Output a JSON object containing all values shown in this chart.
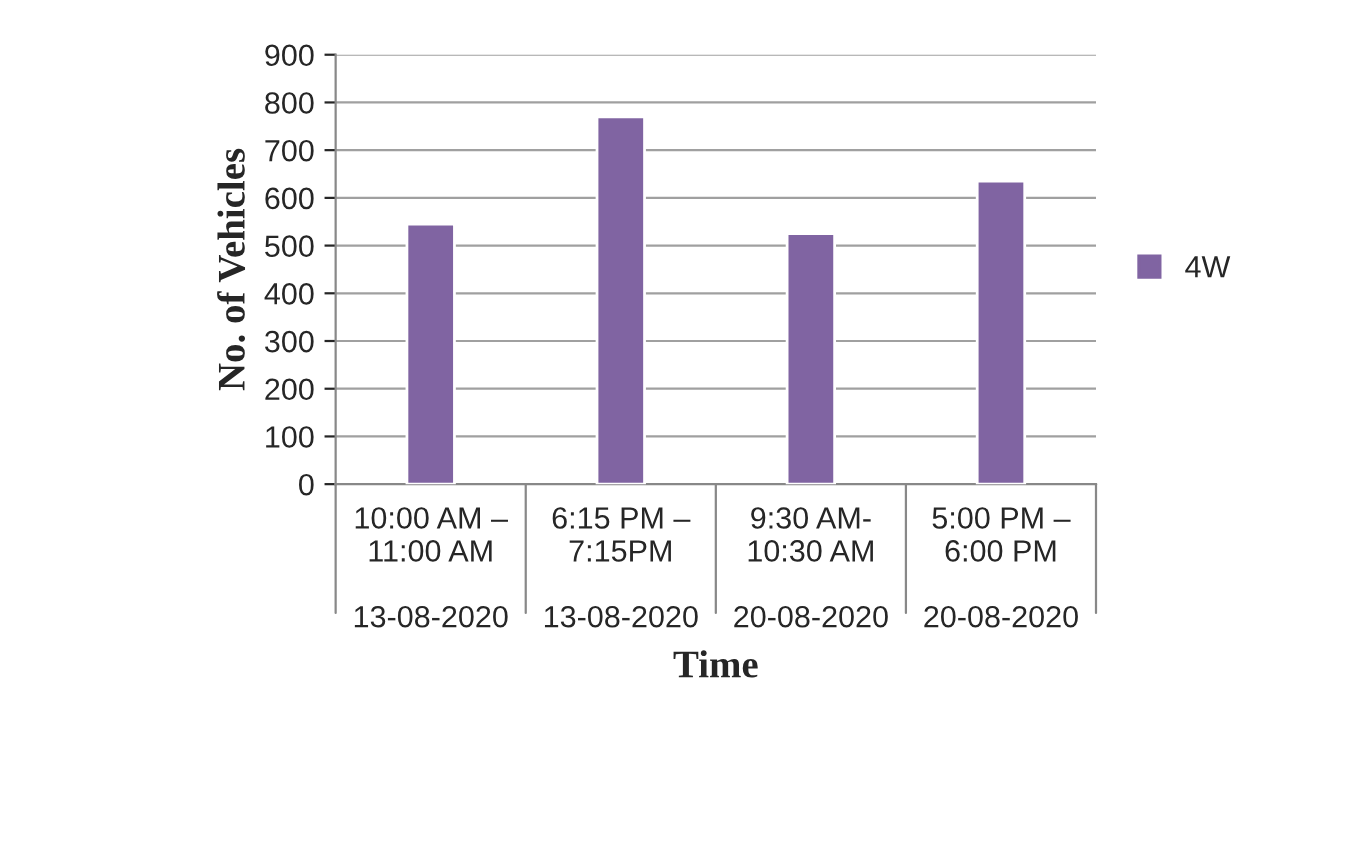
{
  "chart_data": {
    "type": "bar",
    "xlabel": "Time",
    "ylabel": "No. of Vehicles",
    "categories": [
      "10:00 AM –\n11:00 AM\n\n13-08-2020",
      "6:15 PM –\n7:15PM\n\n13-08-2020",
      "9:30 AM-\n10:30 AM\n\n20-08-2020",
      "5:00 PM –\n6:00 PM\n\n20-08-2020"
    ],
    "series": [
      {
        "name": "4W",
        "color": "#8064a2",
        "values": [
          545,
          770,
          525,
          635
        ]
      }
    ],
    "ylim": [
      0,
      900
    ],
    "yticks": [
      0,
      100,
      200,
      300,
      400,
      500,
      600,
      700,
      800,
      900
    ],
    "grid": "y",
    "legend": "right"
  }
}
